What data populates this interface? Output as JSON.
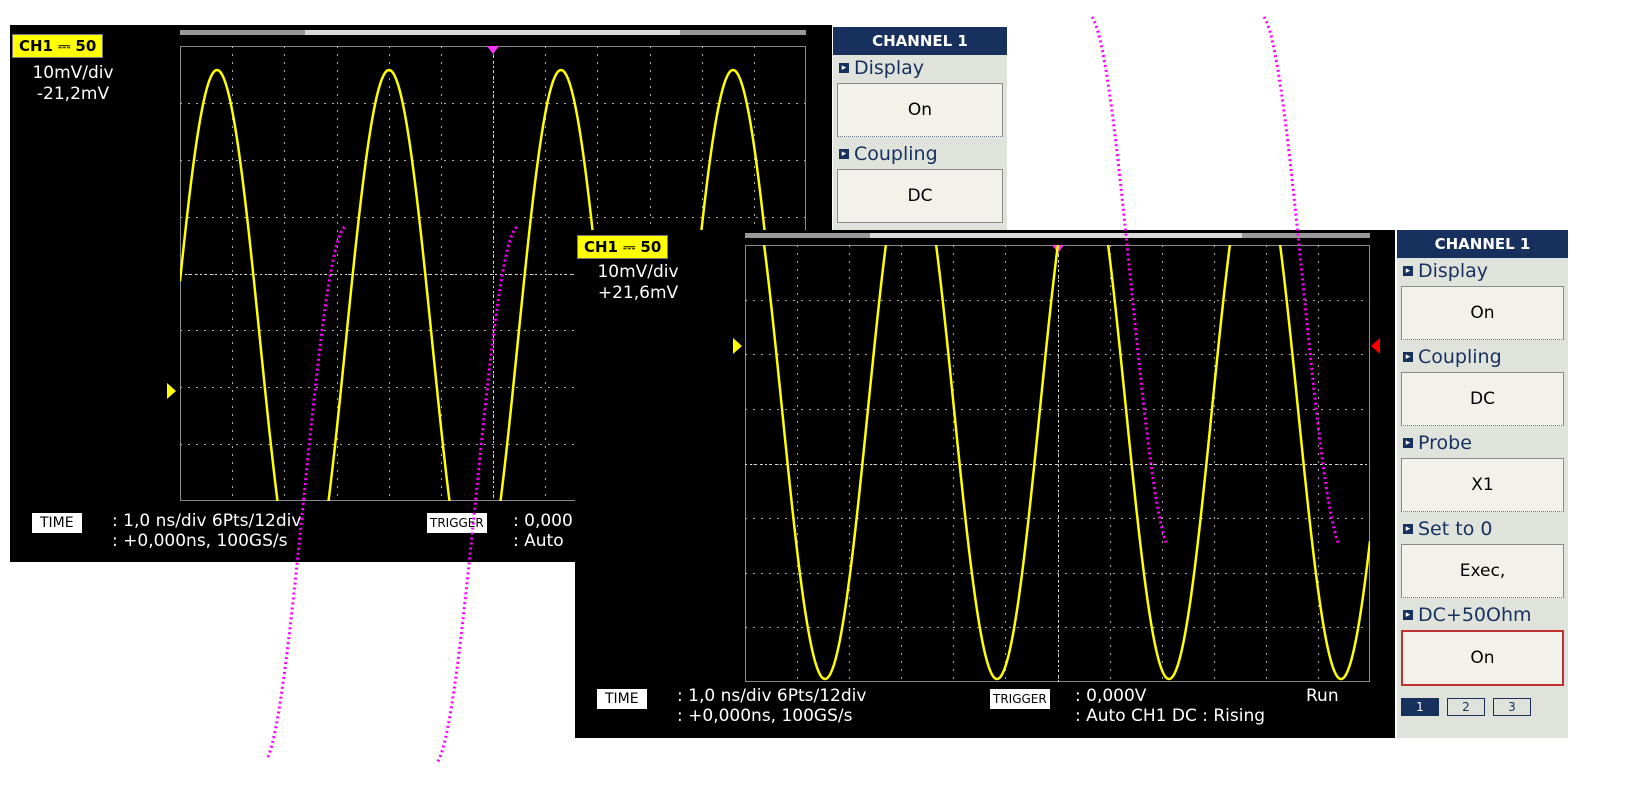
{
  "scope_back": {
    "badge": "CH1 ⎓ 50",
    "volts_div": "10mV/div",
    "offset": "-21,2mV",
    "time_label": "TIME",
    "time_line1": ": 1,0 ns/div 6Pts/12div",
    "time_line2": ": +0,000ns, 100GS/s",
    "trigger_label": "TRIGGER",
    "trigger_line1": ": 0,000",
    "trigger_line2": ": Auto",
    "menu": {
      "title": "CHANNEL 1",
      "items": [
        {
          "label": "Display",
          "value": "On"
        },
        {
          "label": "Coupling",
          "value": "DC"
        }
      ]
    }
  },
  "scope_front": {
    "badge": "CH1 ⎓ 50",
    "volts_div": "10mV/div",
    "offset": "+21,6mV",
    "time_label": "TIME",
    "time_line1": ": 1,0 ns/div 6Pts/12div",
    "time_line2": ": +0,000ns, 100GS/s",
    "trigger_label": "TRIGGER",
    "trigger_line1": ": 0,000V",
    "trigger_line2": ": Auto CH1 DC : Rising",
    "run_state": "Run",
    "menu": {
      "title": "CHANNEL 1",
      "items": [
        {
          "label": "Display",
          "value": "On"
        },
        {
          "label": "Coupling",
          "value": "DC"
        },
        {
          "label": "Probe",
          "value": "X1"
        },
        {
          "label": "Set to 0",
          "value": "Exec,"
        },
        {
          "label": "DC+50Ohm",
          "value": "On"
        }
      ],
      "pages": [
        "1",
        "2",
        "3"
      ],
      "active_page": "1"
    }
  },
  "colors": {
    "trace": "#ffff00",
    "overlay_dotted": "#ff00ff",
    "menu_header": "#17305e",
    "trigger_marker": "#ff33ff",
    "level_marker_front": "#ff0000"
  }
}
